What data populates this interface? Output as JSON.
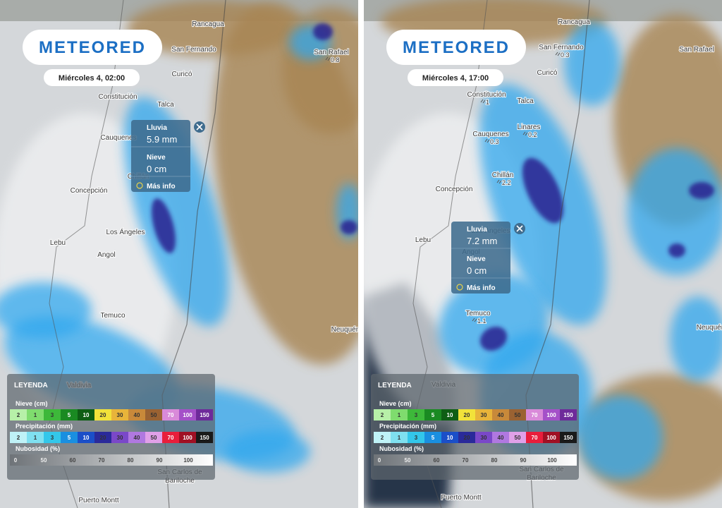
{
  "panels": [
    {
      "logo": "METEORED",
      "time": "Miércoles 4, 02:00",
      "popup": {
        "rain_label": "Lluvia",
        "rain_value": "5.9 mm",
        "snow_label": "Nieve",
        "snow_value": "0 cm",
        "more": "Más info"
      },
      "cities": [
        {
          "name": "Rancagua"
        },
        {
          "name": "San Fernando"
        },
        {
          "name": "Curicó"
        },
        {
          "name": "Talca"
        },
        {
          "name": "Constitución"
        },
        {
          "name": "Cauquenes"
        },
        {
          "name": "Chillán"
        },
        {
          "name": "Concepción"
        },
        {
          "name": "Los Ángeles"
        },
        {
          "name": "Lebu"
        },
        {
          "name": "Angol"
        },
        {
          "name": "Temuco"
        },
        {
          "name": "Valdivia"
        },
        {
          "name": "San Rafael",
          "amount": "0.8"
        },
        {
          "name": "Neuquén"
        },
        {
          "name": [
            "San Carlos de",
            "Bariloche"
          ]
        },
        {
          "name": "Puerto Montt"
        }
      ]
    },
    {
      "logo": "METEORED",
      "time": "Miércoles 4, 17:00",
      "popup": {
        "rain_label": "Lluvia",
        "rain_value": "7.2 mm",
        "snow_label": "Nieve",
        "snow_value": "0 cm",
        "more": "Más info"
      },
      "cities": [
        {
          "name": "Rancagua"
        },
        {
          "name": "San Fernando",
          "amount": "0.3"
        },
        {
          "name": "Curicó"
        },
        {
          "name": "Talca"
        },
        {
          "name": "Constitución",
          "amount": "1"
        },
        {
          "name": "Cauquenes",
          "amount": "0.3"
        },
        {
          "name": "Linares",
          "amount": "0.2"
        },
        {
          "name": "Chillán",
          "amount": "2.2"
        },
        {
          "name": "Concepción"
        },
        {
          "name": "Lebu"
        },
        {
          "name": "Angol"
        },
        {
          "name": "Los Ángeles"
        },
        {
          "name": "Temuco",
          "amount": "1.1"
        },
        {
          "name": "Valdivia"
        },
        {
          "name": "San Rafael"
        },
        {
          "name": "Neuquén"
        },
        {
          "name": [
            "San Carlos de",
            "Bariloche"
          ]
        },
        {
          "name": "Puerto Montt"
        }
      ]
    }
  ],
  "legend": {
    "title": "LEYENDA",
    "snow": {
      "label": "Nieve (cm)",
      "steps": [
        "2",
        "1",
        "3",
        "5",
        "10",
        "20",
        "30",
        "40",
        "50",
        "70",
        "100",
        "150"
      ]
    },
    "precip": {
      "label": "Precipitación (mm)",
      "steps": [
        "2",
        "1",
        "3",
        "5",
        "10",
        "20",
        "30",
        "40",
        "50",
        "70",
        "100",
        "150"
      ]
    },
    "cloud": {
      "label": "Nubosidad (%)",
      "steps": [
        "0",
        "50",
        "60",
        "70",
        "80",
        "90",
        "100"
      ]
    }
  }
}
